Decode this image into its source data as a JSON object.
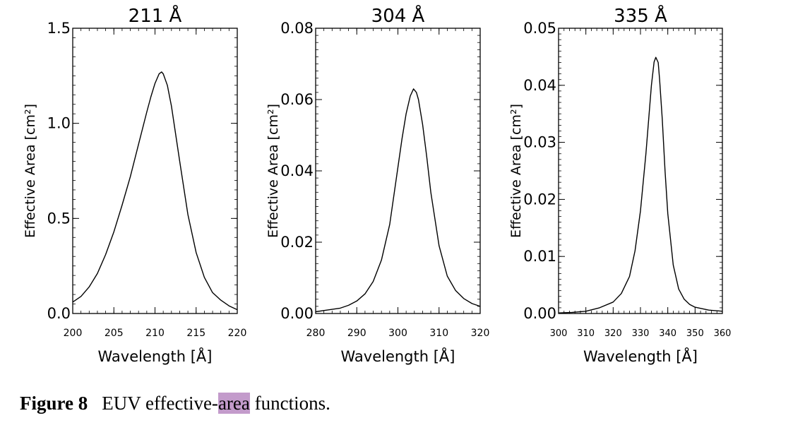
{
  "chart_data": [
    {
      "type": "line",
      "title": "211 Å",
      "xlabel": "Wavelength [Å]",
      "ylabel": "Effective Area [cm²]",
      "xlim": [
        200,
        220
      ],
      "ylim": [
        0.0,
        1.5
      ],
      "xticks": [
        "200",
        "205",
        "210",
        "215",
        "220"
      ],
      "yticks": [
        "0.0",
        "0.5",
        "1.0",
        "1.5"
      ],
      "series": [
        {
          "x": [
            200,
            201,
            202,
            203,
            204,
            205,
            206,
            207,
            208,
            209,
            209.5,
            210,
            210.5,
            210.8,
            211,
            211.5,
            212,
            213,
            214,
            215,
            216,
            217,
            218,
            219,
            220
          ],
          "values": [
            0.06,
            0.09,
            0.14,
            0.21,
            0.31,
            0.43,
            0.57,
            0.72,
            0.89,
            1.06,
            1.14,
            1.21,
            1.26,
            1.27,
            1.26,
            1.2,
            1.09,
            0.8,
            0.52,
            0.32,
            0.19,
            0.11,
            0.07,
            0.04,
            0.02
          ]
        }
      ]
    },
    {
      "type": "line",
      "title": "304 Å",
      "xlabel": "Wavelength [Å]",
      "ylabel": "Effective Area [cm²]",
      "xlim": [
        280,
        320
      ],
      "ylim": [
        0.0,
        0.08
      ],
      "xticks": [
        "280",
        "290",
        "300",
        "310",
        "320"
      ],
      "yticks": [
        "0.00",
        "0.02",
        "0.04",
        "0.06",
        "0.08"
      ],
      "series": [
        {
          "x": [
            280,
            283,
            286,
            288,
            290,
            292,
            294,
            296,
            298,
            300,
            301,
            302,
            303,
            303.8,
            304.5,
            305,
            306,
            307,
            308,
            310,
            312,
            314,
            316,
            318,
            320
          ],
          "values": [
            0.0005,
            0.001,
            0.0015,
            0.0023,
            0.0035,
            0.0055,
            0.009,
            0.015,
            0.025,
            0.041,
            0.049,
            0.056,
            0.061,
            0.063,
            0.062,
            0.06,
            0.053,
            0.044,
            0.034,
            0.019,
            0.0105,
            0.0065,
            0.0042,
            0.0028,
            0.002
          ]
        }
      ]
    },
    {
      "type": "line",
      "title": "335 Å",
      "xlabel": "Wavelength [Å]",
      "ylabel": "Effective Area [cm²]",
      "xlim": [
        300,
        360
      ],
      "ylim": [
        0.0,
        0.05
      ],
      "xticks": [
        "300",
        "310",
        "320",
        "330",
        "340",
        "350",
        "360"
      ],
      "yticks": [
        "0.00",
        "0.01",
        "0.02",
        "0.03",
        "0.04",
        "0.05"
      ],
      "series": [
        {
          "x": [
            300,
            305,
            310,
            315,
            320,
            323,
            326,
            328,
            330,
            332,
            333,
            334,
            335,
            335.6,
            336.5,
            337,
            338,
            339,
            340,
            342,
            344,
            346,
            348,
            350,
            355,
            360
          ],
          "values": [
            0.0001,
            0.0002,
            0.0004,
            0.001,
            0.002,
            0.0035,
            0.0065,
            0.011,
            0.018,
            0.028,
            0.034,
            0.04,
            0.0441,
            0.0449,
            0.044,
            0.041,
            0.034,
            0.025,
            0.0175,
            0.0085,
            0.0043,
            0.0025,
            0.0016,
            0.0011,
            0.0006,
            0.0004
          ]
        }
      ]
    }
  ],
  "caption": {
    "label": "Figure 8",
    "text_before": "EUV effective-",
    "highlight": "area",
    "text_after": " functions."
  },
  "colors": {
    "line": "#000000",
    "highlight": "#c39bcb"
  }
}
